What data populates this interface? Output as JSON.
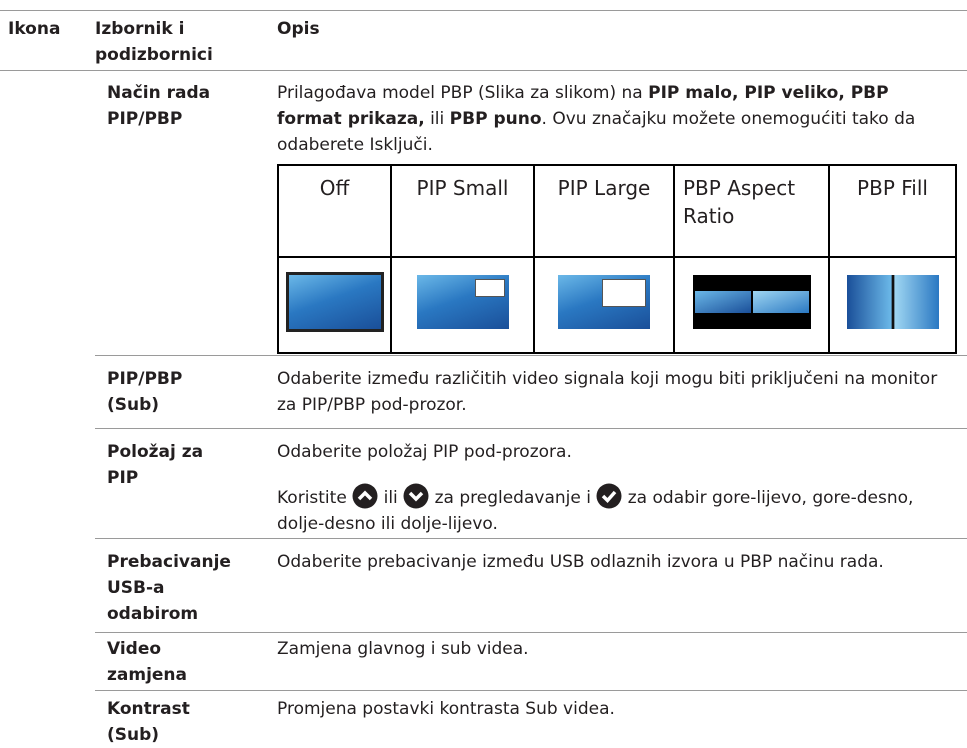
{
  "header": {
    "icon": "Ikona",
    "menu": "Izbornik i podizbornici",
    "description": "Opis"
  },
  "rows": [
    {
      "menu": [
        "Način rada",
        "PIP/PBP"
      ],
      "description": [
        "Prilagođava model PBP (Slika za slikom) na ",
        "PIP malo, PIP veliko, PBP format prikaza,",
        " ili ",
        "PBP puno",
        ". Ovu značajku možete onemogućiti tako da odaberete Isključi."
      ],
      "modes": [
        "Off",
        "PIP Small",
        "PIP Large",
        "PBP Aspect Ratio",
        "PBP Fill"
      ]
    },
    {
      "menu": [
        "PIP/PBP",
        "(Sub)"
      ],
      "description": [
        "Odaberite između različitih video signala koji mogu biti priključeni na monitor za PIP/PBP pod-prozor."
      ]
    },
    {
      "menu": [
        "Položaj za",
        "PIP"
      ],
      "description": [
        "Odaberite položaj PIP pod-prozora."
      ],
      "note": [
        "Koristite ",
        " ili ",
        " za pregledavanje i ",
        " za odabir gore-lijevo, gore-desno, dolje-desno ili dolje-lijevo."
      ]
    },
    {
      "menu": [
        "Prebacivanje",
        "USB-a",
        "odabirom"
      ],
      "description": [
        "Odaberite prebacivanje između USB odlaznih izvora u PBP načinu rada."
      ]
    },
    {
      "menu": [
        "Video",
        "zamjena"
      ],
      "description": [
        "Zamjena glavnog i sub videa."
      ]
    },
    {
      "menu": [
        "Kontrast",
        "(Sub)"
      ],
      "description": [
        "Promjena postavki kontrasta Sub videa."
      ]
    }
  ]
}
